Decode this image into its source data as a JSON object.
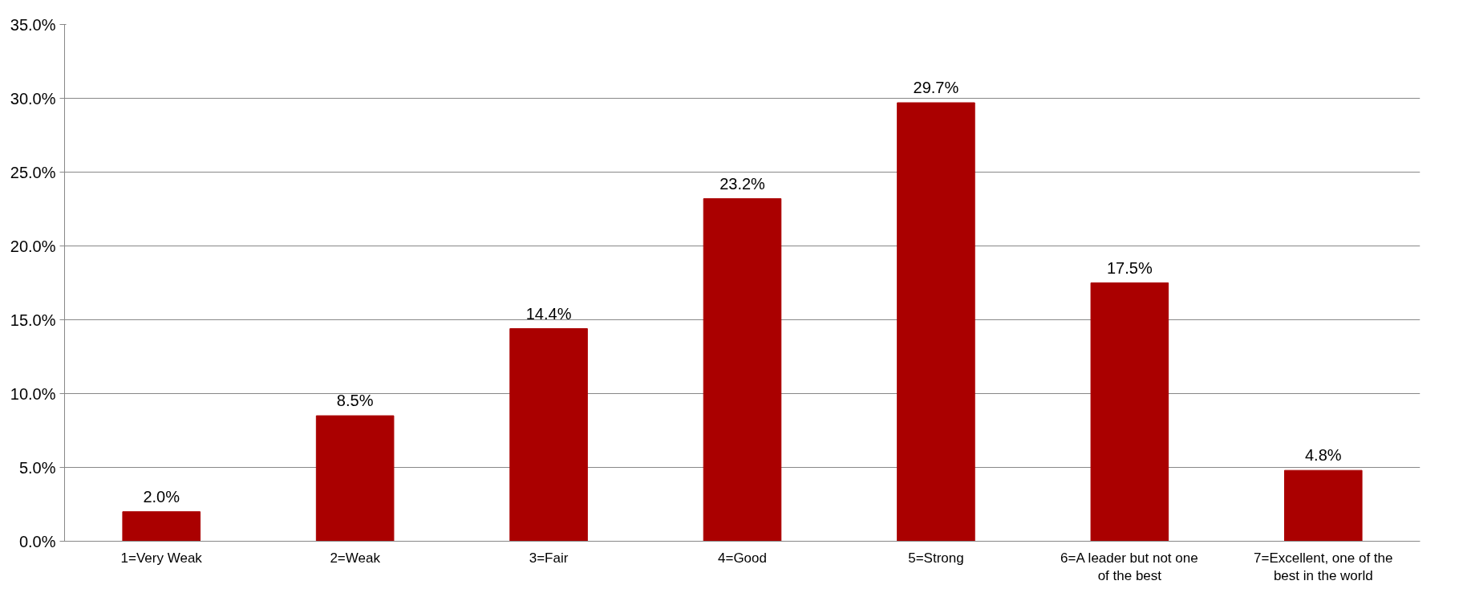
{
  "chart_data": {
    "type": "bar",
    "categories": [
      "1=Very Weak",
      "2=Weak",
      "3=Fair",
      "4=Good",
      "5=Strong",
      "6=A leader but not one of the best",
      "7=Excellent, one of the best in the world"
    ],
    "values": [
      2.0,
      8.5,
      14.4,
      23.2,
      29.7,
      17.5,
      4.8
    ],
    "value_labels": [
      "2.0%",
      "8.5%",
      "14.4%",
      "23.2%",
      "29.7%",
      "17.5%",
      "4.8%"
    ],
    "color": "#aa0000",
    "ylim": [
      0,
      35
    ],
    "yticks": [
      {
        "value": 0,
        "label": "0.0%"
      },
      {
        "value": 5,
        "label": "5.0%"
      },
      {
        "value": 10,
        "label": "10.0%"
      },
      {
        "value": 15,
        "label": "15.0%"
      },
      {
        "value": 20,
        "label": "20.0%"
      },
      {
        "value": 25,
        "label": "25.0%"
      },
      {
        "value": 30,
        "label": "30.0%"
      },
      {
        "value": 35,
        "label": "35.0%"
      }
    ],
    "grid": "y"
  }
}
